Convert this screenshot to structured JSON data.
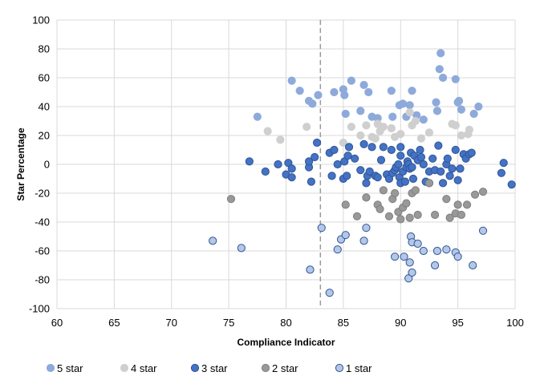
{
  "chart_data": {
    "type": "scatter",
    "title": "",
    "xlabel": "Compliance Indicator",
    "ylabel": "Star Percentage",
    "xlim": [
      60,
      100
    ],
    "ylim": [
      -100,
      100
    ],
    "xticks": [
      60,
      65,
      70,
      75,
      80,
      85,
      90,
      95,
      100
    ],
    "yticks": [
      -100,
      -80,
      -60,
      -40,
      -20,
      0,
      20,
      40,
      60,
      80,
      100
    ],
    "grid": true,
    "legend_position": "bottom",
    "reference_line": {
      "x": 83
    },
    "series": [
      {
        "name": "5 star",
        "color": "#8EAADB",
        "stroke": "#8EAADB",
        "points": [
          [
            77.5,
            33
          ],
          [
            80.5,
            58
          ],
          [
            81.2,
            51
          ],
          [
            82,
            44
          ],
          [
            82.3,
            42
          ],
          [
            82.8,
            48
          ],
          [
            84.2,
            50
          ],
          [
            85,
            52
          ],
          [
            85.1,
            48
          ],
          [
            85.2,
            35
          ],
          [
            85.7,
            58
          ],
          [
            86.5,
            37
          ],
          [
            86.8,
            55
          ],
          [
            87.2,
            50
          ],
          [
            87.5,
            33
          ],
          [
            88,
            32
          ],
          [
            89.2,
            51
          ],
          [
            89.3,
            33
          ],
          [
            89.9,
            41
          ],
          [
            90.2,
            42
          ],
          [
            90.5,
            33
          ],
          [
            90.8,
            41
          ],
          [
            91,
            51
          ],
          [
            91.4,
            34
          ],
          [
            92,
            31
          ],
          [
            93.1,
            43
          ],
          [
            93.2,
            37
          ],
          [
            93.4,
            66
          ],
          [
            93.5,
            77
          ],
          [
            93.7,
            60
          ],
          [
            94.8,
            59
          ],
          [
            95,
            43
          ],
          [
            95.1,
            44
          ],
          [
            95.3,
            38
          ],
          [
            96.4,
            35
          ],
          [
            96.8,
            40
          ]
        ]
      },
      {
        "name": "4 star",
        "color": "#CFCFCF",
        "stroke": "#CFCFCF",
        "points": [
          [
            78.4,
            23
          ],
          [
            79.5,
            17
          ],
          [
            81.8,
            26
          ],
          [
            85,
            15
          ],
          [
            85.7,
            26
          ],
          [
            86.5,
            20
          ],
          [
            87,
            27
          ],
          [
            87.5,
            19
          ],
          [
            87.8,
            18
          ],
          [
            88,
            28
          ],
          [
            88.2,
            23
          ],
          [
            88.5,
            26
          ],
          [
            89.2,
            25
          ],
          [
            89.5,
            19
          ],
          [
            90,
            21
          ],
          [
            90.8,
            36
          ],
          [
            91,
            27
          ],
          [
            91.3,
            30
          ],
          [
            91.8,
            18
          ],
          [
            92.5,
            22
          ],
          [
            94.5,
            28
          ],
          [
            94.8,
            27
          ],
          [
            95.3,
            20
          ],
          [
            95.9,
            21
          ],
          [
            96,
            24
          ]
        ]
      },
      {
        "name": "3 star",
        "color": "#4472C4",
        "stroke": "#2F5597",
        "points": [
          [
            76.8,
            2
          ],
          [
            78.2,
            -5
          ],
          [
            79.3,
            0
          ],
          [
            80,
            -7
          ],
          [
            80.2,
            1
          ],
          [
            80.5,
            -3
          ],
          [
            80.5,
            -9
          ],
          [
            82,
            -2
          ],
          [
            82,
            2
          ],
          [
            82.2,
            -12
          ],
          [
            82.5,
            5
          ],
          [
            82.7,
            15
          ],
          [
            83.8,
            8
          ],
          [
            84,
            -8
          ],
          [
            84.2,
            10
          ],
          [
            84.5,
            0
          ],
          [
            85,
            -10
          ],
          [
            85.1,
            2
          ],
          [
            85.3,
            -8
          ],
          [
            85.4,
            6
          ],
          [
            85.5,
            12
          ],
          [
            86,
            4
          ],
          [
            86.5,
            -4
          ],
          [
            86.8,
            14
          ],
          [
            87,
            -13
          ],
          [
            87.1,
            -8
          ],
          [
            87.3,
            -5
          ],
          [
            87.5,
            12
          ],
          [
            87.8,
            -8
          ],
          [
            88,
            -9
          ],
          [
            88.3,
            3
          ],
          [
            88.5,
            12
          ],
          [
            88.8,
            -7
          ],
          [
            89,
            -10
          ],
          [
            89.2,
            10
          ],
          [
            89.3,
            -6
          ],
          [
            89.5,
            -4
          ],
          [
            89.6,
            -2
          ],
          [
            89.8,
            0
          ],
          [
            89.9,
            -9
          ],
          [
            90,
            6
          ],
          [
            90,
            12
          ],
          [
            90,
            -13
          ],
          [
            90.2,
            -5
          ],
          [
            90.4,
            -12
          ],
          [
            90.5,
            -2
          ],
          [
            90.6,
            2
          ],
          [
            90.7,
            0
          ],
          [
            90.8,
            -3
          ],
          [
            90.9,
            8
          ],
          [
            91,
            -2
          ],
          [
            91.1,
            -10
          ],
          [
            91.2,
            6
          ],
          [
            91.5,
            3
          ],
          [
            91.7,
            10
          ],
          [
            91.8,
            5
          ],
          [
            92,
            0
          ],
          [
            92.2,
            -12
          ],
          [
            92.5,
            -13
          ],
          [
            92.5,
            -5
          ],
          [
            92.8,
            4
          ],
          [
            93,
            -4
          ],
          [
            93.3,
            13
          ],
          [
            93.5,
            -5
          ],
          [
            93.7,
            -13
          ],
          [
            94,
            0
          ],
          [
            94.1,
            4
          ],
          [
            94.3,
            -8
          ],
          [
            94.5,
            -3
          ],
          [
            94.8,
            10
          ],
          [
            95,
            -11
          ],
          [
            95.2,
            -3
          ],
          [
            95.5,
            7
          ],
          [
            95.7,
            4
          ],
          [
            96,
            7
          ],
          [
            96.2,
            8
          ],
          [
            98.8,
            -6
          ],
          [
            99,
            1
          ],
          [
            99.7,
            -14
          ]
        ]
      },
      {
        "name": "2 star",
        "color": "#999999",
        "stroke": "#7F7F7F",
        "points": [
          [
            75.2,
            -24
          ],
          [
            85.2,
            -28
          ],
          [
            86.2,
            -36
          ],
          [
            87,
            -23
          ],
          [
            88,
            -28
          ],
          [
            88.2,
            -31
          ],
          [
            88.5,
            -18
          ],
          [
            89,
            -36
          ],
          [
            89.3,
            -24
          ],
          [
            89.5,
            -20
          ],
          [
            89.8,
            -33
          ],
          [
            90,
            -38
          ],
          [
            90.2,
            -30
          ],
          [
            90.5,
            -27
          ],
          [
            90.8,
            -37
          ],
          [
            91,
            -20
          ],
          [
            91.3,
            -18
          ],
          [
            91.5,
            -35
          ],
          [
            92.5,
            -13
          ],
          [
            93,
            -35
          ],
          [
            94,
            -24
          ],
          [
            94.3,
            -37
          ],
          [
            94.8,
            -34
          ],
          [
            95,
            -28
          ],
          [
            95.3,
            -35
          ],
          [
            95.8,
            -28
          ],
          [
            96.5,
            -21
          ],
          [
            97.2,
            -19
          ]
        ]
      },
      {
        "name": "1 star",
        "color": "#B4C7E7",
        "stroke": "#2F5597",
        "points": [
          [
            73.6,
            -53
          ],
          [
            76.1,
            -58
          ],
          [
            82.1,
            -73
          ],
          [
            83.1,
            -44
          ],
          [
            83.8,
            -89
          ],
          [
            84.5,
            -59
          ],
          [
            84.8,
            -52
          ],
          [
            85.2,
            -49
          ],
          [
            86.8,
            -53
          ],
          [
            87,
            -44
          ],
          [
            89.5,
            -64
          ],
          [
            90.3,
            -64
          ],
          [
            90.7,
            -79
          ],
          [
            90.8,
            -68
          ],
          [
            90.9,
            -50
          ],
          [
            91,
            -54
          ],
          [
            91,
            -75
          ],
          [
            91.5,
            -55
          ],
          [
            92,
            -60
          ],
          [
            93,
            -70
          ],
          [
            93.2,
            -60
          ],
          [
            94,
            -59
          ],
          [
            94.8,
            -61
          ],
          [
            95,
            -64
          ],
          [
            96.3,
            -70
          ],
          [
            97.2,
            -46
          ]
        ]
      }
    ]
  }
}
